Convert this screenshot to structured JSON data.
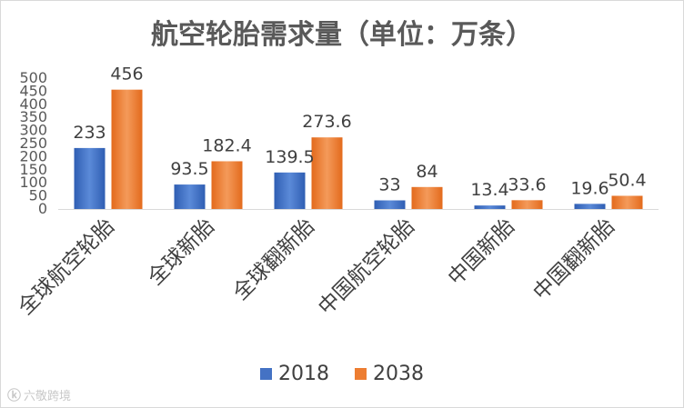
{
  "chart_data": {
    "type": "bar",
    "title": "航空轮胎需求量（单位：万条）",
    "categories": [
      "全球航空轮胎",
      "全球新胎",
      "全球翻新胎",
      "中国航空轮胎",
      "中国新胎",
      "中国翻新胎"
    ],
    "series": [
      {
        "name": "2018",
        "color": "#4472C4",
        "values": [
          233,
          93.5,
          139.5,
          33,
          13.4,
          19.6
        ]
      },
      {
        "name": "2038",
        "color": "#ED7D31",
        "values": [
          456,
          182.4,
          273.6,
          84,
          33.6,
          50.4
        ]
      }
    ],
    "ylim": [
      0,
      500
    ],
    "yticks": [
      0,
      50,
      100,
      150,
      200,
      250,
      300,
      350,
      400,
      450,
      500
    ],
    "grid": false,
    "legend": "bottom"
  },
  "watermark": {
    "icon": "logo-icon",
    "text": "六敬跨境"
  }
}
